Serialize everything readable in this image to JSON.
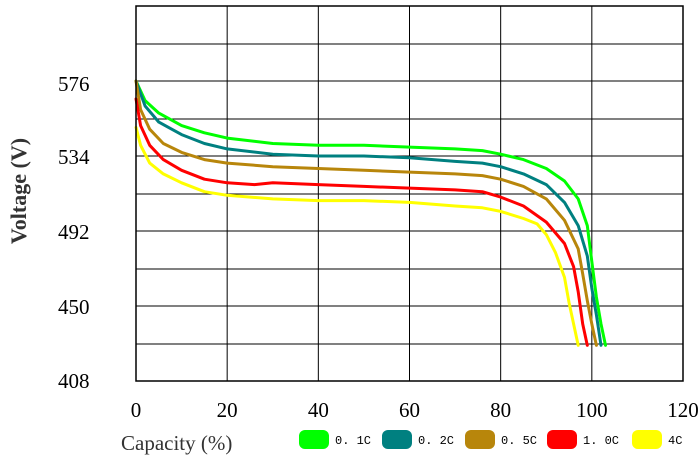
{
  "chart_data": {
    "type": "line",
    "xlabel": "Capacity (%)",
    "ylabel": "Voltage (V)",
    "xlim": [
      0,
      120
    ],
    "ylim": [
      408,
      576
    ],
    "x_ticks": [
      0,
      20,
      40,
      60,
      80,
      100,
      120
    ],
    "y_ticks": [
      408,
      450,
      492,
      534,
      576
    ],
    "grid": true,
    "legend_position": "bottom",
    "series": [
      {
        "name": "0.1C",
        "color": "#00ff00",
        "points": [
          [
            0,
            576
          ],
          [
            2,
            565
          ],
          [
            5,
            558
          ],
          [
            10,
            551
          ],
          [
            15,
            547
          ],
          [
            20,
            544
          ],
          [
            30,
            541
          ],
          [
            40,
            540
          ],
          [
            50,
            540
          ],
          [
            60,
            539
          ],
          [
            70,
            538
          ],
          [
            76,
            537
          ],
          [
            80,
            535
          ],
          [
            85,
            532
          ],
          [
            90,
            527
          ],
          [
            94,
            520
          ],
          [
            97,
            510
          ],
          [
            99,
            495
          ],
          [
            100,
            475
          ],
          [
            101,
            455
          ],
          [
            102,
            440
          ],
          [
            103,
            428
          ]
        ]
      },
      {
        "name": "0.2C",
        "color": "#008080",
        "points": [
          [
            0,
            576
          ],
          [
            2,
            562
          ],
          [
            5,
            553
          ],
          [
            10,
            546
          ],
          [
            15,
            541
          ],
          [
            20,
            538
          ],
          [
            30,
            535
          ],
          [
            40,
            534
          ],
          [
            50,
            534
          ],
          [
            60,
            533
          ],
          [
            70,
            531
          ],
          [
            76,
            530
          ],
          [
            80,
            528
          ],
          [
            85,
            524
          ],
          [
            90,
            518
          ],
          [
            94,
            508
          ],
          [
            97,
            495
          ],
          [
            99,
            478
          ],
          [
            100,
            460
          ],
          [
            101,
            445
          ],
          [
            102,
            428
          ]
        ]
      },
      {
        "name": "0.5C",
        "color": "#b8860b",
        "points": [
          [
            0,
            576
          ],
          [
            1,
            560
          ],
          [
            3,
            549
          ],
          [
            6,
            541
          ],
          [
            10,
            536
          ],
          [
            15,
            532
          ],
          [
            20,
            530
          ],
          [
            30,
            528
          ],
          [
            40,
            527
          ],
          [
            50,
            526
          ],
          [
            60,
            525
          ],
          [
            70,
            524
          ],
          [
            76,
            523
          ],
          [
            80,
            521
          ],
          [
            85,
            517
          ],
          [
            90,
            510
          ],
          [
            94,
            498
          ],
          [
            97,
            482
          ],
          [
            98,
            468
          ],
          [
            99,
            453
          ],
          [
            100,
            440
          ],
          [
            101,
            428
          ]
        ]
      },
      {
        "name": "1.0C",
        "color": "#ff0000",
        "points": [
          [
            0,
            566
          ],
          [
            1,
            551
          ],
          [
            3,
            540
          ],
          [
            6,
            532
          ],
          [
            10,
            526
          ],
          [
            15,
            521
          ],
          [
            20,
            519
          ],
          [
            26,
            518
          ],
          [
            30,
            519
          ],
          [
            40,
            518
          ],
          [
            50,
            517
          ],
          [
            60,
            516
          ],
          [
            70,
            515
          ],
          [
            76,
            514
          ],
          [
            80,
            511
          ],
          [
            85,
            506
          ],
          [
            90,
            497
          ],
          [
            94,
            485
          ],
          [
            96,
            472
          ],
          [
            97,
            458
          ],
          [
            98,
            440
          ],
          [
            99,
            428
          ]
        ]
      },
      {
        "name": "4C",
        "color": "#ffff00",
        "points": [
          [
            0,
            550
          ],
          [
            1,
            540
          ],
          [
            3,
            530
          ],
          [
            6,
            524
          ],
          [
            10,
            519
          ],
          [
            15,
            514
          ],
          [
            20,
            512
          ],
          [
            30,
            510
          ],
          [
            40,
            509
          ],
          [
            50,
            509
          ],
          [
            60,
            508
          ],
          [
            70,
            506
          ],
          [
            76,
            505
          ],
          [
            80,
            503
          ],
          [
            85,
            499
          ],
          [
            88,
            496
          ],
          [
            90,
            490
          ],
          [
            92,
            480
          ],
          [
            94,
            466
          ],
          [
            95,
            452
          ],
          [
            96,
            440
          ],
          [
            97,
            428
          ]
        ]
      }
    ]
  },
  "legend": {
    "items": [
      {
        "label": "0. 1C",
        "color": "#00ff00"
      },
      {
        "label": "0. 2C",
        "color": "#008080"
      },
      {
        "label": "0. 5C",
        "color": "#b8860b"
      },
      {
        "label": "1. 0C",
        "color": "#ff0000"
      },
      {
        "label": "4C",
        "color": "#ffff00"
      }
    ]
  },
  "axes": {
    "x_tick_labels": [
      "0",
      "20",
      "40",
      "60",
      "80",
      "100",
      "120"
    ],
    "y_tick_labels": [
      "408",
      "450",
      "492",
      "534",
      "576"
    ],
    "x_title": "Capacity (%)",
    "y_title": "Voltage (V)"
  }
}
